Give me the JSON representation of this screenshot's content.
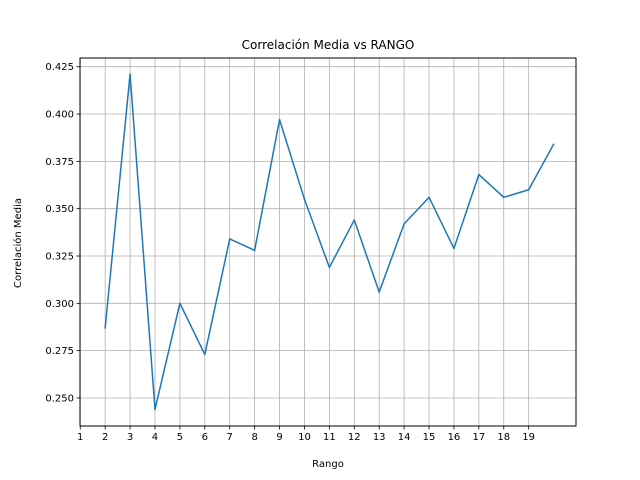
{
  "chart_data": {
    "type": "line",
    "title": "Correlación Media vs RANGO",
    "xlabel": "Rango",
    "ylabel": "Correlación Media",
    "x": [
      2,
      3,
      4,
      5,
      6,
      7,
      8,
      9,
      10,
      11,
      12,
      13,
      14,
      15,
      16,
      17,
      18,
      19,
      20
    ],
    "series": [
      {
        "values": [
          0.287,
          0.421,
          0.244,
          0.3,
          0.273,
          0.334,
          0.328,
          0.397,
          0.355,
          0.319,
          0.344,
          0.306,
          0.342,
          0.356,
          0.329,
          0.368,
          0.356,
          0.36,
          0.384
        ],
        "color": "#1f77b4"
      }
    ],
    "xticks": [
      "1",
      "2",
      "3",
      "4",
      "5",
      "6",
      "7",
      "8",
      "9",
      "10",
      "11",
      "12",
      "13",
      "14",
      "15",
      "16",
      "17",
      "18",
      "19"
    ],
    "yticks": [
      "0.250",
      "0.275",
      "0.300",
      "0.325",
      "0.350",
      "0.375",
      "0.400",
      "0.425"
    ],
    "xlim": [
      0.99,
      20.9
    ],
    "ylim": [
      0.2352,
      0.4296
    ],
    "grid": true
  }
}
